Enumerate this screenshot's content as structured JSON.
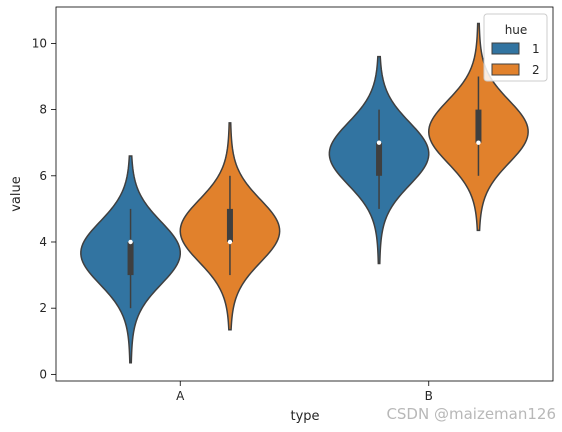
{
  "chart_data": {
    "type": "violin",
    "xlabel": "type",
    "ylabel": "value",
    "categories": [
      "A",
      "B"
    ],
    "ylim": [
      -0.2,
      11.1
    ],
    "yticks": [
      0,
      2,
      4,
      6,
      8,
      10
    ],
    "legend": {
      "title": "hue",
      "placement": "top-right",
      "entries": [
        "1",
        "2"
      ]
    },
    "series": [
      {
        "name": "1",
        "color": "#3274a1",
        "groups": [
          {
            "category": "A",
            "min": 2,
            "q1": 3,
            "median": 4,
            "q3": 4,
            "max": 5,
            "kde_range": [
              0.35,
              6.6
            ]
          },
          {
            "category": "B",
            "min": 5,
            "q1": 6,
            "median": 7,
            "q3": 7,
            "max": 8,
            "kde_range": [
              3.35,
              9.6
            ]
          }
        ]
      },
      {
        "name": "2",
        "color": "#e1812c",
        "groups": [
          {
            "category": "A",
            "min": 3,
            "q1": 4,
            "median": 4,
            "q3": 5,
            "max": 6,
            "kde_range": [
              1.35,
              7.6
            ]
          },
          {
            "category": "B",
            "min": 6,
            "q1": 7,
            "median": 7,
            "q3": 8,
            "max": 9,
            "kde_range": [
              4.35,
              10.6
            ]
          }
        ]
      }
    ]
  },
  "watermark": "CSDN @maizeman126"
}
